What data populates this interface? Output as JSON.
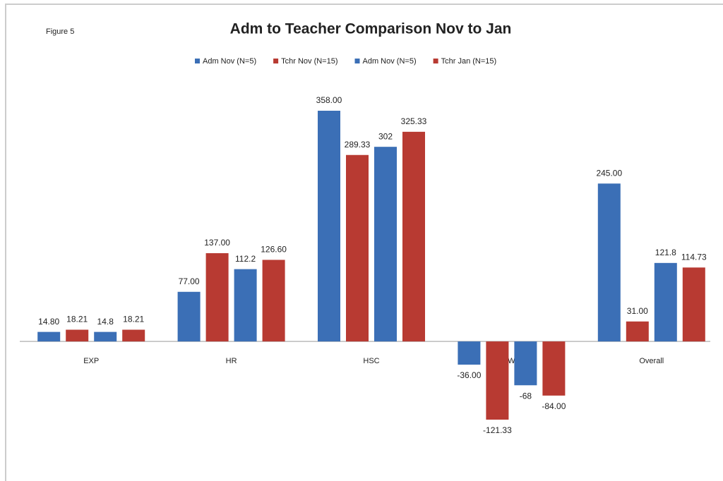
{
  "chart_data": {
    "type": "bar",
    "title": "Adm to Teacher Comparison Nov to Jan",
    "figure_label": "Figure 5",
    "categories": [
      "EXP",
      "HR",
      "HSC",
      "HWC",
      "Overall"
    ],
    "series": [
      {
        "name": "Adm Nov (N=5)",
        "color": "#3b6fb6",
        "values": [
          14.8,
          77,
          358,
          -36,
          245
        ],
        "value_labels": [
          "14.80",
          "77.00",
          "358.00",
          "-36.00",
          "245.00"
        ]
      },
      {
        "name": "Tchr Nov (N=15)",
        "color": "#b83a32",
        "values": [
          18.21,
          137,
          289.33,
          -121.33,
          31
        ],
        "value_labels": [
          "18.21",
          "137.00",
          "289.33",
          "-121.33",
          "31.00"
        ]
      },
      {
        "name": "Adm Nov (N=5)",
        "color": "#3b6fb6",
        "values": [
          14.8,
          112.2,
          302,
          -68,
          121.8
        ]
      },
      {
        "name": "Tchr Jan (N=15)",
        "color": "#b83a32",
        "values": [
          18.21,
          126.6,
          325.33,
          -84,
          114.73
        ],
        "value_labels": [
          "18.21",
          "126.60",
          "325.33",
          "-84.00",
          "114.73"
        ]
      }
    ]
  }
}
